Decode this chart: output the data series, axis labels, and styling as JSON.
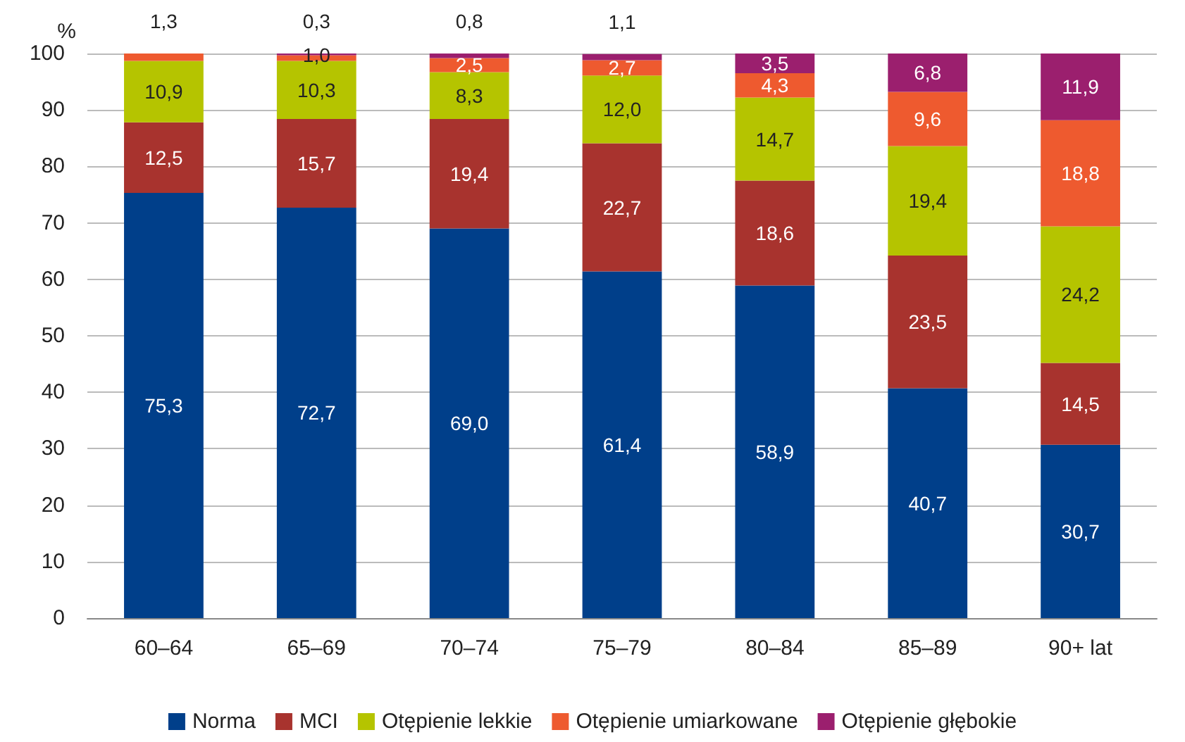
{
  "chart_data": {
    "type": "bar",
    "stacked": true,
    "ylabel": "%",
    "categories": [
      "60–64",
      "65–69",
      "70–74",
      "75–79",
      "80–84",
      "85–89",
      "90+ lat"
    ],
    "ylim": [
      0,
      100
    ],
    "yticks": [
      0,
      10,
      20,
      30,
      40,
      50,
      60,
      70,
      80,
      90,
      100
    ],
    "grid": "y",
    "legend": "bottom",
    "series": [
      {
        "name": "Norma",
        "color": "#003f8a",
        "values": [
          75.3,
          72.7,
          69.0,
          61.4,
          58.9,
          40.7,
          30.7
        ],
        "value_labels": [
          "75,3",
          "72,7",
          "69,0",
          "61,4",
          "58,9",
          "40,7",
          "30,7"
        ]
      },
      {
        "name": "MCI",
        "color": "#a8332e",
        "values": [
          12.5,
          15.7,
          19.4,
          22.7,
          18.6,
          23.5,
          14.5
        ],
        "value_labels": [
          "12,5",
          "15,7",
          "19,4",
          "22,7",
          "18,6",
          "23,5",
          "14,5"
        ]
      },
      {
        "name": "Otępienie lekkie",
        "color": "#b5c400",
        "values": [
          10.9,
          10.3,
          8.3,
          12.0,
          14.7,
          19.4,
          24.2
        ],
        "value_labels": [
          "10,9",
          "10,3",
          "8,3",
          "12,0",
          "14,7",
          "19,4",
          "24,2"
        ]
      },
      {
        "name": "Otępienie umiarkowane",
        "color": "#ee5a2f",
        "values": [
          1.3,
          1.0,
          2.5,
          2.7,
          4.3,
          9.6,
          18.8
        ],
        "value_labels": [
          "1,3",
          "1,0",
          "2,5",
          "2,7",
          "4,3",
          "9,6",
          "18,8"
        ]
      },
      {
        "name": "Otępienie głębokie",
        "color": "#9b1f6e",
        "values": [
          null,
          0.3,
          0.8,
          1.1,
          3.5,
          6.8,
          11.9
        ],
        "value_labels": [
          null,
          "0,3",
          "0,8",
          "1,1",
          "3,5",
          "6,8",
          "11,9"
        ]
      }
    ]
  }
}
